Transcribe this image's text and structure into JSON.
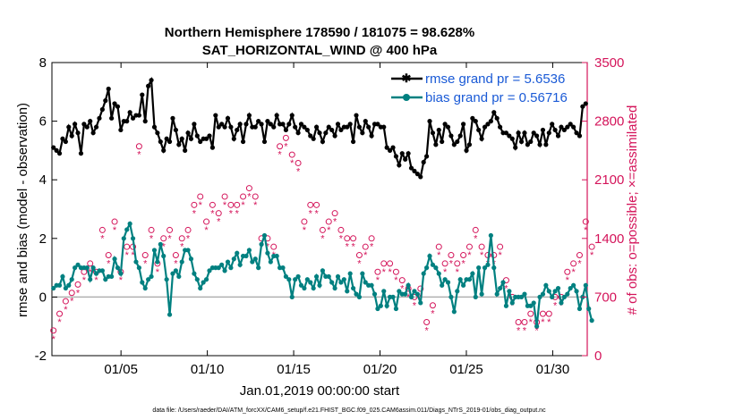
{
  "chart_data": {
    "type": "line",
    "title": "Northern Hemisphere 178590 / 181075 = 98.628%",
    "subtitle": "SAT_HORIZONTAL_WIND @ 400 hPa",
    "xlabel": "Jan.01,2019 00:00:00 start",
    "ylabel_left": "rmse and bias (model - observation)",
    "ylabel_right": "# of obs: o=possible; ×=assimilated",
    "footnote": "data file: /Users/raeder/DAI/ATM_forcXX/CAM6_setup/f.e21.FHIST_BGC.f09_025.CAM6assim.011/Diags_NTrS_2019-01/obs_diag_output.nc",
    "xlim": [
      1,
      32
    ],
    "ylim_left": [
      -2,
      8
    ],
    "ylim_right": [
      0,
      3500
    ],
    "x_ticks": [
      5,
      10,
      15,
      20,
      25,
      30
    ],
    "x_tick_labels": [
      "01/05",
      "01/10",
      "01/15",
      "01/20",
      "01/25",
      "01/30"
    ],
    "y_ticks_left": [
      "-2",
      "0",
      "2",
      "4",
      "6",
      "8"
    ],
    "y_ticks_right": [
      "0",
      "700",
      "1400",
      "2100",
      "2800",
      "3500"
    ],
    "colors": {
      "rmse": "#000000",
      "bias": "#008080",
      "obs": "#d4145a",
      "zero": "#b0b0b0",
      "legend_text": "#1a5ad6"
    },
    "series": [
      {
        "name": "rmse grand pr = 5.6536",
        "axis": "left",
        "values": [
          5.1,
          5.0,
          4.9,
          5.4,
          5.3,
          5.8,
          5.5,
          5.9,
          5.6,
          4.9,
          5.9,
          5.8,
          6.0,
          5.6,
          5.8,
          6.1,
          6.4,
          6.7,
          7.1,
          6.1,
          6.6,
          6.5,
          5.7,
          6.0,
          6.0,
          6.3,
          6.1,
          6.2,
          6.2,
          6.9,
          6.0,
          7.2,
          7.4,
          5.8,
          5.6,
          5.3,
          5.0,
          5.4,
          5.3,
          6.1,
          5.7,
          5.2,
          5.4,
          5.0,
          5.6,
          5.4,
          5.9,
          5.5,
          5.3,
          5.4,
          5.4,
          5.5,
          5.1,
          6.2,
          5.8,
          5.9,
          5.8,
          6.1,
          5.8,
          5.4,
          5.7,
          5.9,
          5.3,
          5.9,
          6.2,
          5.8,
          5.8,
          6.0,
          5.9,
          5.3,
          6.0,
          5.9,
          5.8,
          6.2,
          5.9,
          5.9,
          5.7,
          5.9,
          6.2,
          5.8,
          5.6,
          5.9,
          5.8,
          5.7,
          5.5,
          5.4,
          5.8,
          5.6,
          5.3,
          5.6,
          5.8,
          5.7,
          5.5,
          5.9,
          5.7,
          5.8,
          5.8,
          5.9,
          5.3,
          6.2,
          5.8,
          5.6,
          6.0,
          5.8,
          5.5,
          5.9,
          5.9,
          5.8,
          5.8,
          5.1,
          5.0,
          5.1,
          4.8,
          4.5,
          4.9,
          4.7,
          4.9,
          4.4,
          4.3,
          4.2,
          4.1,
          4.6,
          4.8,
          6.0,
          5.6,
          5.2,
          5.7,
          5.3,
          5.9,
          5.8,
          5.5,
          5.2,
          5.3,
          5.5,
          5.9,
          5.0,
          5.2,
          6.1,
          6.0,
          5.7,
          5.4,
          5.8,
          5.9,
          6.0,
          6.3,
          6.1,
          5.8,
          5.6,
          5.6,
          5.5,
          5.4,
          5.1,
          5.6,
          5.3,
          5.6,
          5.2,
          5.3,
          5.6,
          5.5,
          5.2,
          5.7,
          5.2,
          5.6,
          5.9,
          5.7,
          5.5,
          5.8,
          5.7,
          5.8,
          5.9,
          5.8,
          5.6,
          5.5,
          6.5,
          6.6
        ]
      },
      {
        "name": "bias grand pr = 0.56716",
        "axis": "left",
        "values": [
          0.3,
          0.4,
          0.4,
          0.7,
          0.3,
          0.4,
          0.6,
          1.0,
          1.1,
          1.0,
          1.0,
          1.0,
          0.6,
          1.0,
          0.8,
          0.9,
          0.9,
          0.6,
          0.7,
          0.7,
          1.3,
          1.0,
          0.8,
          2.0,
          2.3,
          2.5,
          2.0,
          1.2,
          1.0,
          0.5,
          0.3,
          0.6,
          0.7,
          1.6,
          1.2,
          1.8,
          1.4,
          0.6,
          -0.6,
          0.8,
          0.9,
          0.7,
          1.2,
          1.6,
          1.6,
          1.3,
          0.8,
          0.6,
          0.3,
          0.5,
          0.6,
          0.9,
          1.0,
          1.0,
          1.0,
          1.1,
          0.9,
          1.2,
          1.0,
          1.3,
          1.5,
          1.1,
          1.4,
          1.4,
          1.6,
          1.2,
          1.3,
          1.0,
          1.8,
          2.1,
          1.5,
          1.2,
          1.4,
          1.4,
          1.0,
          1.0,
          0.7,
          0.6,
          0.0,
          0.6,
          0.7,
          0.4,
          0.3,
          0.6,
          0.5,
          0.3,
          0.7,
          0.4,
          0.9,
          0.7,
          0.7,
          0.5,
          0.3,
          0.7,
          0.5,
          0.6,
          0.2,
          0.8,
          0.3,
          0.1,
          0.0,
          0.8,
          0.5,
          0.4,
          0.4,
          0.1,
          -0.4,
          -0.3,
          0.2,
          -0.3,
          0.0,
          0.0,
          -0.4,
          0.2,
          0.1,
          0.1,
          0.4,
          0.0,
          0.2,
          0.1,
          -0.2,
          0.8,
          1.0,
          1.4,
          1.1,
          1.0,
          0.8,
          0.4,
          0.6,
          0.5,
          0.0,
          -0.5,
          0.2,
          0.6,
          0.4,
          0.6,
          0.6,
          0.8,
          0.0,
          1.0,
          0.1,
          1.0,
          1.1,
          2.1,
          1.0,
          0.1,
          0.3,
          0.5,
          -0.3,
          0.2,
          -0.2,
          0.0,
          0.0,
          0.0,
          0.1,
          -0.3,
          -0.3,
          -0.2,
          -1.0,
          0.0,
          0.1,
          0.4,
          0.2,
          0.0,
          0.2,
          0.3,
          -0.2,
          0.0,
          0.1,
          0.3,
          0.4,
          0.2,
          -0.4,
          0.0,
          0.4,
          -0.4,
          -0.8
        ]
      }
    ],
    "obs_counts": {
      "possible": [
        300,
        500,
        500,
        600,
        650,
        700,
        750,
        800,
        850,
        900,
        1000,
        1200,
        1100,
        900,
        1000,
        1300,
        1500,
        1100,
        1200,
        1400,
        1600,
        1200,
        1000,
        1100,
        1300,
        1200,
        1300,
        1500,
        2500,
        1400,
        1200,
        1300,
        1500,
        1100,
        1100,
        1300,
        1400,
        1600,
        1500,
        1400,
        1200,
        1300,
        1400,
        1300,
        1500,
        1700,
        1800,
        1700,
        1900,
        2000,
        1600,
        1900,
        1800,
        1500,
        1700,
        1400,
        1900,
        2200,
        1800,
        1600,
        1800,
        2000,
        1900,
        1800,
        2000,
        2100,
        1900,
        1900,
        1400,
        1300,
        1400,
        1500,
        1300,
        1400,
        2500,
        2400,
        2600,
        2300,
        2400,
        2100,
        2300,
        2700,
        1600,
        2000,
        1800,
        1700,
        1800,
        1600,
        1500,
        1700,
        1600,
        1700,
        1700,
        1600,
        1500,
        1300,
        1400,
        1200,
        1400,
        1200,
        1200,
        1100,
        1300,
        1200,
        1400,
        1300,
        1000,
        1200,
        1100,
        1200,
        1100,
        1000,
        1000,
        1100,
        900,
        800,
        800,
        700,
        700,
        700,
        800,
        600,
        400,
        500,
        600,
        1200,
        1300,
        1200,
        1100,
        1300,
        1200,
        1000,
        1100,
        1100,
        1200,
        1300,
        1300,
        1600,
        1500,
        1400,
        1300,
        1200,
        1200,
        1300,
        1200,
        1100,
        1300,
        1000,
        900,
        700,
        700,
        500,
        400,
        500,
        400,
        400,
        500,
        500,
        400,
        500,
        500,
        400,
        500,
        600,
        700,
        900,
        700,
        1000,
        1000,
        1100,
        1100,
        1200,
        1200,
        1400,
        1600,
        1400,
        1300,
        1200
      ],
      "assimilated": [
        290,
        490,
        490,
        590,
        640,
        690,
        740,
        790,
        840,
        890,
        990,
        1190,
        1090,
        890,
        990,
        1290,
        1490,
        1090,
        1190,
        1390,
        1590,
        1190,
        990,
        1090,
        1290,
        1190,
        1290,
        1490,
        2490,
        1390,
        1190,
        1290,
        1490,
        1090,
        1090,
        1290,
        1390,
        1590,
        1490,
        1390,
        1190,
        1290,
        1390,
        1290,
        1490,
        1690,
        1790,
        1690,
        1890,
        1990,
        1590,
        1890,
        1790,
        1490,
        1690,
        1390,
        1890,
        2190,
        1790,
        1590,
        1790,
        1990,
        1890,
        1790,
        1990,
        2090,
        1890,
        1890,
        1390,
        1290,
        1390,
        1490,
        1290,
        1390,
        2490,
        2390,
        2590,
        2290,
        2390,
        2090,
        2290,
        2690,
        1590,
        1990,
        1790,
        1690,
        1790,
        1590,
        1490,
        1690,
        1590,
        1690,
        1690,
        1590,
        1490,
        1290,
        1390,
        1190,
        1390,
        1190,
        1190,
        1090,
        1290,
        1190,
        1390,
        1290,
        990,
        1190,
        1090,
        1190,
        1090,
        990,
        990,
        1090,
        890,
        790,
        790,
        690,
        690,
        690,
        790,
        590,
        390,
        490,
        590,
        1190,
        1290,
        1190,
        1090,
        1290,
        1190,
        990,
        1090,
        1090,
        1190,
        1290,
        1290,
        1590,
        1490,
        1390,
        1290,
        1190,
        1190,
        1290,
        1190,
        1090,
        1290,
        990,
        890,
        690,
        690,
        490,
        390,
        490,
        390,
        390,
        490,
        490,
        390,
        490,
        490,
        390,
        490,
        590,
        690,
        890,
        690,
        990,
        990,
        1090,
        1090,
        1190,
        1190,
        1390,
        1590,
        1390,
        1290,
        1190
      ]
    },
    "legend_position": "top-right"
  }
}
